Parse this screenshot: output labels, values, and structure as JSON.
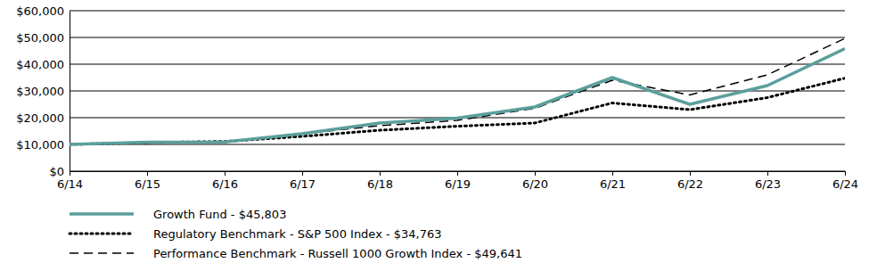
{
  "chart_data": {
    "type": "line",
    "categories": [
      "6/14",
      "6/15",
      "6/16",
      "6/17",
      "6/18",
      "6/19",
      "6/20",
      "6/21",
      "6/22",
      "6/23",
      "6/24"
    ],
    "series": [
      {
        "name": "Growth Fund - $45,803",
        "color": "#5b9f9b",
        "line_style": "solid",
        "values": [
          10000,
          10800,
          10900,
          14000,
          18000,
          19800,
          24000,
          35000,
          25000,
          32000,
          45803
        ]
      },
      {
        "name": "Regulatory Benchmark - S&P 500 Index - $34,763",
        "color": "#000000",
        "line_style": "dotted",
        "values": [
          10000,
          10700,
          11100,
          13000,
          15300,
          16800,
          18000,
          25500,
          23000,
          27500,
          34763
        ]
      },
      {
        "name": "Performance Benchmark - Russell 1000 Growth Index - $49,641",
        "color": "#000000",
        "line_style": "dashed",
        "values": [
          10000,
          10500,
          11000,
          14000,
          17000,
          19000,
          23500,
          34000,
          28500,
          36000,
          49641
        ]
      }
    ],
    "ylim": [
      0,
      60000
    ],
    "yticks": [
      {
        "value": 0,
        "label": "$0"
      },
      {
        "value": 10000,
        "label": "$10,000"
      },
      {
        "value": 20000,
        "label": "$20,000"
      },
      {
        "value": 30000,
        "label": "$30,000"
      },
      {
        "value": 40000,
        "label": "$40,000"
      },
      {
        "value": 50000,
        "label": "$50,000"
      },
      {
        "value": 60000,
        "label": "$60,000"
      }
    ],
    "grid": true,
    "legend": "bottom"
  }
}
